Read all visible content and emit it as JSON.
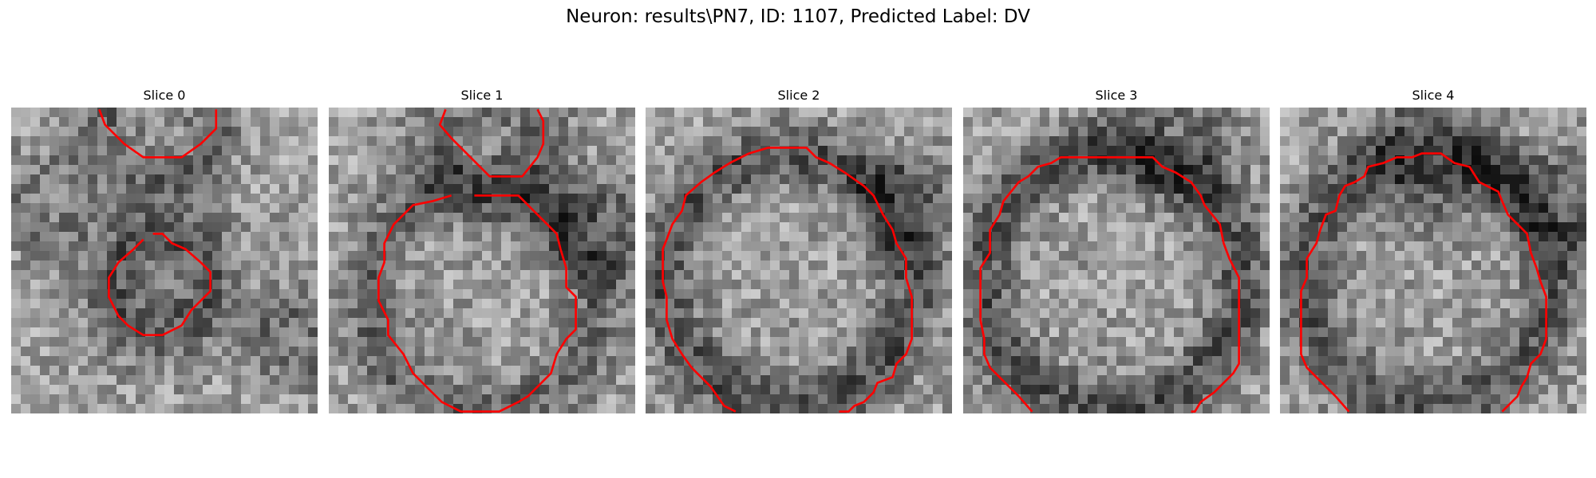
{
  "figure": {
    "title": "Neuron: results\\PN7, ID: 1107, Predicted Label: DV",
    "contour_color": "#ff0000",
    "colormap": "grayscale",
    "grid_cells": 32,
    "slices": [
      {
        "label": "Slice 0",
        "contours": [
          [
            [
              9.2,
              0.2
            ],
            [
              9.8,
              1.8
            ],
            [
              11.8,
              3.8
            ],
            [
              13.8,
              5.2
            ],
            [
              17.8,
              5.2
            ],
            [
              19.8,
              3.8
            ],
            [
              21.4,
              2.2
            ],
            [
              21.4,
              0.2
            ]
          ],
          [
            [
              14.8,
              13.2
            ],
            [
              15.8,
              13.2
            ],
            [
              16.8,
              14.2
            ],
            [
              18.2,
              14.8
            ],
            [
              19.8,
              16.2
            ],
            [
              20.8,
              17.2
            ],
            [
              20.8,
              19.2
            ],
            [
              19.8,
              20.2
            ],
            [
              18.8,
              21.2
            ],
            [
              17.8,
              22.8
            ],
            [
              15.8,
              23.8
            ],
            [
              13.8,
              23.8
            ],
            [
              12.2,
              22.8
            ],
            [
              11.2,
              21.8
            ],
            [
              10.2,
              19.8
            ],
            [
              10.2,
              17.8
            ],
            [
              11.2,
              16.2
            ],
            [
              12.8,
              14.8
            ],
            [
              13.8,
              13.8
            ]
          ]
        ]
      },
      {
        "label": "Slice 1",
        "contours": [
          [
            [
              12.2,
              0.2
            ],
            [
              11.6,
              1.8
            ],
            [
              12.8,
              3.2
            ],
            [
              14.8,
              5.2
            ],
            [
              16.8,
              7.2
            ],
            [
              20.2,
              7.2
            ],
            [
              21.8,
              5.2
            ],
            [
              22.4,
              3.8
            ],
            [
              22.4,
              1.4
            ],
            [
              21.8,
              0.2
            ]
          ],
          [
            [
              15.2,
              9.2
            ],
            [
              19.8,
              9.2
            ],
            [
              20.8,
              10.2
            ],
            [
              21.8,
              11.2
            ],
            [
              22.8,
              12.2
            ],
            [
              23.8,
              13.2
            ],
            [
              24.2,
              14.8
            ],
            [
              24.8,
              16.8
            ],
            [
              24.8,
              18.8
            ],
            [
              25.8,
              19.8
            ],
            [
              25.8,
              23.2
            ],
            [
              24.8,
              24.2
            ],
            [
              23.8,
              25.8
            ],
            [
              23.2,
              27.8
            ],
            [
              21.8,
              29.2
            ],
            [
              20.8,
              30.2
            ],
            [
              19.8,
              30.8
            ],
            [
              17.8,
              31.8
            ],
            [
              13.8,
              31.8
            ],
            [
              11.8,
              30.8
            ],
            [
              10.2,
              29.2
            ],
            [
              8.8,
              27.8
            ],
            [
              7.8,
              25.8
            ],
            [
              6.2,
              23.8
            ],
            [
              6.2,
              22.2
            ],
            [
              5.2,
              20.2
            ],
            [
              5.2,
              17.8
            ],
            [
              5.8,
              16.2
            ],
            [
              5.8,
              14.2
            ],
            [
              6.8,
              12.2
            ],
            [
              7.8,
              11.2
            ],
            [
              8.8,
              10.2
            ],
            [
              10.8,
              9.8
            ],
            [
              12.8,
              9.2
            ]
          ]
        ]
      },
      {
        "label": "Slice 2",
        "contours": [
          [
            [
              9.4,
              31.8
            ],
            [
              8.2,
              31.2
            ],
            [
              6.8,
              29.2
            ],
            [
              4.8,
              27.2
            ],
            [
              3.8,
              25.8
            ],
            [
              2.8,
              24.2
            ],
            [
              2.2,
              22.2
            ],
            [
              2.2,
              19.8
            ],
            [
              1.8,
              18.2
            ],
            [
              1.8,
              14.8
            ],
            [
              2.2,
              13.8
            ],
            [
              2.8,
              12.2
            ],
            [
              3.8,
              10.8
            ],
            [
              4.2,
              9.2
            ],
            [
              5.8,
              7.8
            ],
            [
              7.2,
              6.8
            ],
            [
              8.8,
              5.8
            ],
            [
              10.8,
              4.8
            ],
            [
              12.8,
              4.2
            ],
            [
              16.8,
              4.2
            ],
            [
              17.8,
              5.2
            ],
            [
              19.2,
              5.8
            ],
            [
              20.8,
              6.8
            ],
            [
              22.8,
              8.2
            ],
            [
              23.8,
              9.2
            ],
            [
              24.8,
              11.2
            ],
            [
              25.8,
              12.8
            ],
            [
              26.2,
              14.2
            ],
            [
              27.2,
              15.8
            ],
            [
              27.2,
              17.8
            ],
            [
              27.8,
              19.8
            ],
            [
              27.8,
              24.2
            ],
            [
              27.2,
              25.8
            ],
            [
              26.2,
              26.8
            ],
            [
              25.8,
              28.2
            ],
            [
              24.2,
              28.8
            ],
            [
              23.8,
              29.8
            ],
            [
              22.8,
              30.8
            ],
            [
              21.8,
              31.2
            ],
            [
              21.2,
              31.8
            ],
            [
              20.2,
              31.8
            ]
          ]
        ]
      },
      {
        "label": "Slice 3",
        "contours": [
          [
            [
              7.2,
              31.8
            ],
            [
              5.8,
              30.2
            ],
            [
              4.8,
              29.2
            ],
            [
              3.8,
              28.2
            ],
            [
              2.8,
              27.2
            ],
            [
              2.2,
              25.8
            ],
            [
              2.2,
              24.2
            ],
            [
              1.8,
              22.2
            ],
            [
              1.8,
              16.8
            ],
            [
              2.8,
              15.2
            ],
            [
              2.8,
              12.8
            ],
            [
              3.8,
              11.2
            ],
            [
              4.2,
              9.8
            ],
            [
              5.8,
              7.8
            ],
            [
              6.8,
              7.2
            ],
            [
              7.8,
              6.2
            ],
            [
              9.2,
              5.8
            ],
            [
              10.2,
              5.2
            ],
            [
              19.8,
              5.2
            ],
            [
              20.8,
              6.2
            ],
            [
              22.2,
              6.8
            ],
            [
              23.8,
              7.8
            ],
            [
              24.8,
              9.2
            ],
            [
              25.2,
              10.2
            ],
            [
              26.8,
              12.2
            ],
            [
              27.2,
              14.2
            ],
            [
              27.8,
              15.8
            ],
            [
              28.8,
              17.8
            ],
            [
              28.8,
              22.8
            ],
            [
              28.8,
              24.2
            ],
            [
              28.8,
              26.8
            ],
            [
              28.2,
              27.8
            ],
            [
              27.2,
              28.8
            ],
            [
              26.2,
              29.8
            ],
            [
              24.8,
              30.8
            ],
            [
              24.2,
              31.8
            ],
            [
              23.8,
              31.8
            ]
          ]
        ]
      },
      {
        "label": "Slice 4",
        "contours": [
          [
            [
              7.2,
              31.8
            ],
            [
              5.8,
              30.2
            ],
            [
              4.8,
              29.2
            ],
            [
              3.8,
              28.2
            ],
            [
              2.8,
              27.2
            ],
            [
              2.2,
              25.8
            ],
            [
              2.2,
              22.2
            ],
            [
              2.2,
              19.2
            ],
            [
              2.8,
              17.8
            ],
            [
              2.8,
              15.8
            ],
            [
              3.8,
              14.2
            ],
            [
              4.2,
              12.8
            ],
            [
              4.8,
              11.2
            ],
            [
              5.8,
              10.8
            ],
            [
              6.2,
              9.2
            ],
            [
              6.8,
              8.2
            ],
            [
              7.8,
              7.8
            ],
            [
              8.8,
              7.2
            ],
            [
              9.2,
              6.2
            ],
            [
              10.8,
              5.8
            ],
            [
              12.2,
              5.2
            ],
            [
              13.8,
              5.2
            ],
            [
              14.8,
              4.8
            ],
            [
              16.8,
              4.8
            ],
            [
              18.2,
              5.8
            ],
            [
              19.8,
              6.2
            ],
            [
              20.8,
              7.8
            ],
            [
              22.8,
              8.8
            ],
            [
              23.2,
              9.8
            ],
            [
              23.8,
              11.2
            ],
            [
              24.8,
              12.2
            ],
            [
              25.8,
              13.2
            ],
            [
              26.2,
              15.2
            ],
            [
              26.8,
              16.8
            ],
            [
              27.2,
              18.2
            ],
            [
              27.8,
              19.8
            ],
            [
              27.8,
              24.2
            ],
            [
              27.2,
              25.8
            ],
            [
              26.2,
              26.8
            ],
            [
              25.8,
              28.2
            ],
            [
              25.2,
              29.2
            ],
            [
              24.8,
              30.2
            ],
            [
              23.8,
              31.2
            ],
            [
              23.2,
              31.8
            ]
          ]
        ]
      }
    ]
  }
}
